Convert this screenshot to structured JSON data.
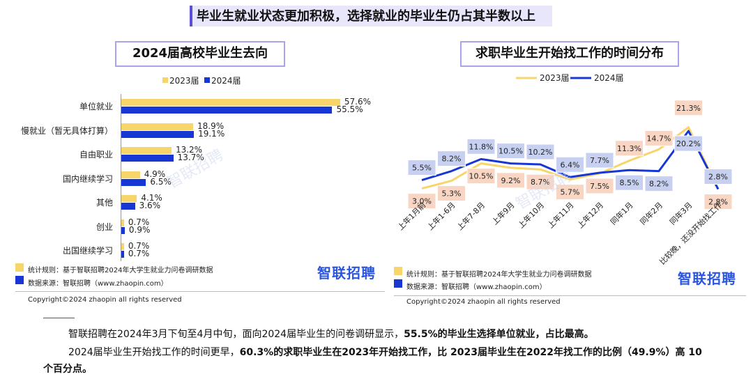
{
  "header": {
    "title": "毕业生就业状态更加积极，选择就业的毕业生仍占其半数以上"
  },
  "colors": {
    "y2023": "#f7d56b",
    "y2024": "#1737d4",
    "accent": "#a9a4ea",
    "box2023": "#f9d6c4",
    "box2024": "#c7d0f0"
  },
  "left_chart": {
    "title": "2024届高校毕业生去向",
    "legend": [
      "2023届",
      "2024届"
    ],
    "footnote_rule": "统计规则：基于智联招聘2024年大学生就业力问卷调研数据",
    "footnote_source": "数据来源：智联招聘（www.zhaopin.com）",
    "copyright": "Copyright©2024 zhaopin all rights reserved",
    "logo": "智联招聘",
    "watermark": "智联招聘"
  },
  "right_chart": {
    "title": "求职毕业生开始找工作的时间分布",
    "legend": [
      "2023届",
      "2024届"
    ],
    "footnote_rule": "统计规则：基于智联招聘2024年大学生就业力问卷调研数据",
    "footnote_source": "数据来源：智联招聘（www.zhaopin.com）",
    "copyright": "Copyright©2024 zhaopin all rights reserved",
    "logo": "智联招聘",
    "watermark": "智联招聘"
  },
  "chart_data": [
    {
      "type": "bar",
      "orientation": "horizontal",
      "title": "2024届高校毕业生去向",
      "categories": [
        "单位就业",
        "慢就业（暂无具体打算）",
        "自由职业",
        "国内继续学习",
        "其他",
        "创业",
        "出国继续学习"
      ],
      "series": [
        {
          "name": "2023届",
          "values": [
            57.6,
            18.9,
            13.2,
            4.9,
            4.1,
            0.7,
            0.7
          ],
          "labels": [
            "57.6%",
            "18.9%",
            "13.2%",
            "4.9%",
            "4.1%",
            "0.7%",
            "0.7%"
          ]
        },
        {
          "name": "2024届",
          "values": [
            55.5,
            19.1,
            13.7,
            6.5,
            3.6,
            0.9,
            0.7
          ],
          "labels": [
            "55.5%",
            "19.1%",
            "13.7%",
            "6.5%",
            "3.6%",
            "0.9%",
            "0.7%"
          ]
        }
      ],
      "legend_position": "top"
    },
    {
      "type": "line",
      "title": "求职毕业生开始找工作的时间分布",
      "categories": [
        "上年1月前",
        "上年1-6月",
        "上年7-8月",
        "上年9月",
        "上年10月",
        "上年11月",
        "上年12月",
        "同年1月",
        "同年2月",
        "同年3月",
        "比较晚，还没开始找工作"
      ],
      "series": [
        {
          "name": "2023届",
          "values": [
            3.0,
            5.3,
            10.5,
            9.2,
            8.7,
            5.7,
            7.5,
            11.3,
            14.7,
            21.3,
            2.8
          ],
          "labels": [
            "3.0%",
            "5.3%",
            "10.5%",
            "9.2%",
            "8.7%",
            "5.7%",
            "7.5%",
            "11.3%",
            "14.7%",
            "21.3%",
            "2.8%"
          ]
        },
        {
          "name": "2024届",
          "values": [
            5.5,
            8.2,
            11.8,
            10.5,
            10.2,
            6.4,
            7.7,
            8.5,
            8.2,
            20.2,
            2.8
          ],
          "labels": [
            "5.5%",
            "8.2%",
            "11.8%",
            "10.5%",
            "10.2%",
            "6.4%",
            "7.7%",
            "8.5%",
            "8.2%",
            "20.2%",
            "2.8%"
          ]
        }
      ],
      "legend_position": "top"
    }
  ],
  "paragraphs": {
    "p1_a": "智联招聘在2024年3月下旬至4月中旬，面向2024届毕业生的问卷调研显示，",
    "p1_b": "55.5%的毕业生选择单位就业，占比最高。",
    "p2_a": "2024届毕业生开始找工作的时间更早，",
    "p2_b": "60.3%的求职毕业生在2023年开始找工作，比 2023届毕业生在2022年找工作的比例（49.9%）高 10 个百分点。"
  }
}
